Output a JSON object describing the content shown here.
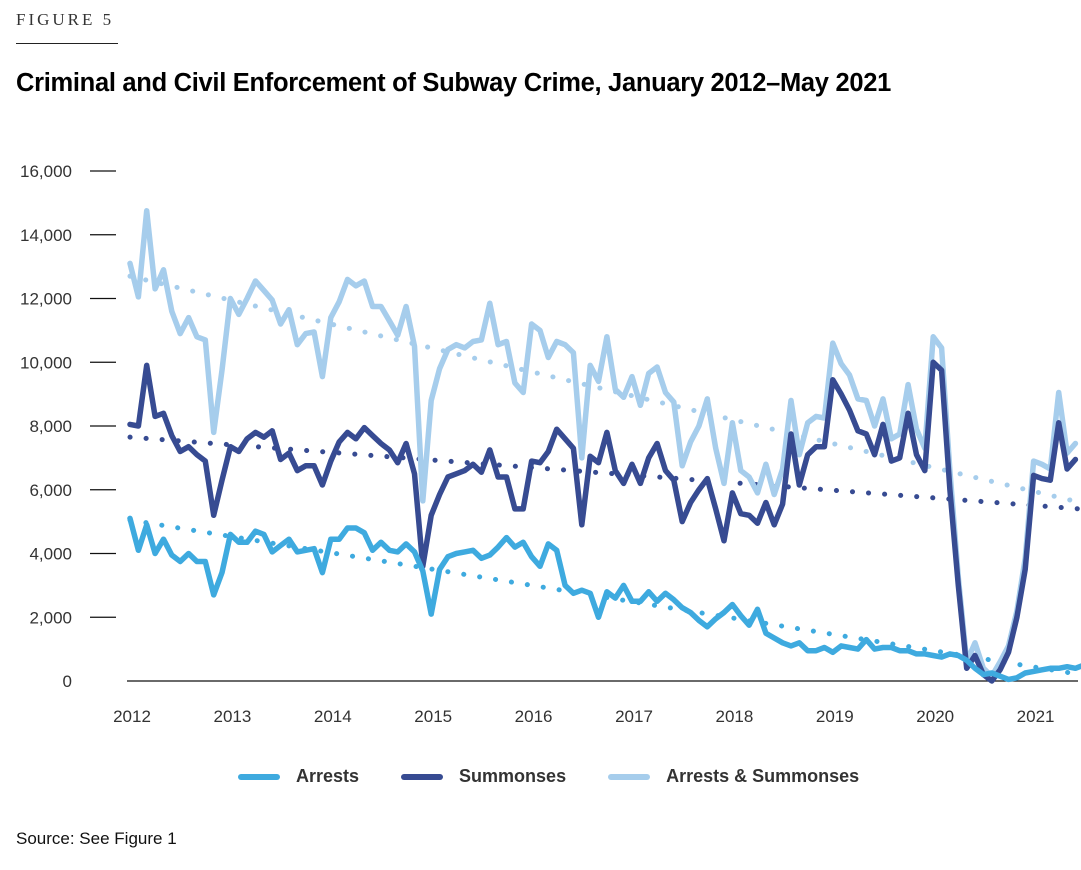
{
  "figure_label": "FIGURE 5",
  "title": "Criminal and Civil Enforcement of Subway Crime, January 2012–May 2021",
  "source": "Source: See Figure 1",
  "chart_data": {
    "type": "line",
    "title": "Criminal and Civil Enforcement of Subway Crime, January 2012–May 2021",
    "xlabel": "",
    "ylabel": "",
    "x_start": "2012-01",
    "x_end": "2021-05",
    "frequency": "monthly",
    "ylim": [
      0,
      16000
    ],
    "yticks": [
      0,
      2000,
      4000,
      6000,
      8000,
      10000,
      12000,
      14000,
      16000
    ],
    "ytick_labels": [
      "0",
      "2,000",
      "4,000",
      "6,000",
      "8,000",
      "10,000",
      "12,000",
      "14,000",
      "16,000"
    ],
    "xtick_labels": [
      "2012",
      "2013",
      "2014",
      "2015",
      "2016",
      "2017",
      "2018",
      "2019",
      "2020",
      "2021"
    ],
    "grid": false,
    "legend_position": "bottom",
    "series": [
      {
        "name": "Arrests",
        "color": "#3eaadf",
        "values": [
          5100,
          4100,
          4900,
          4000,
          4450,
          3950,
          3750,
          4000,
          3750,
          3750,
          2700,
          3400,
          4600,
          4350,
          4350,
          4700,
          4600,
          4050,
          4250,
          4450,
          4050,
          4100,
          4150,
          3400,
          4450,
          4450,
          4800,
          4800,
          4650,
          4100,
          4350,
          4100,
          4050,
          4300,
          4050,
          3450,
          2100,
          3500,
          3900,
          4000,
          4050,
          4100,
          3850,
          3950,
          4200,
          4500,
          4200,
          4350,
          3900,
          3600,
          4300,
          4100,
          3000,
          2750,
          2850,
          2750,
          2000,
          2800,
          2600,
          3000,
          2500,
          2500,
          2800,
          2500,
          2750,
          2550,
          2300,
          2150,
          1900,
          1700,
          1950,
          2150,
          2400,
          2050,
          1750,
          2250,
          1500,
          1350,
          1200,
          1100,
          1200,
          950,
          950,
          1050,
          900,
          1100,
          1050,
          1000,
          1300,
          1000,
          1050,
          1050,
          950,
          950,
          850,
          850,
          800,
          750,
          850,
          800,
          650,
          400,
          200,
          250,
          150,
          50,
          100,
          250,
          300,
          350,
          400,
          400,
          450,
          400,
          500,
          450,
          500
        ],
        "trend": [
          5050,
          100
        ]
      },
      {
        "name": "Summonses",
        "color": "#374b92",
        "values": [
          8050,
          8000,
          9900,
          8300,
          8400,
          7700,
          7200,
          7350,
          7100,
          6900,
          5200,
          6300,
          7350,
          7200,
          7600,
          7800,
          7650,
          7850,
          6950,
          7150,
          6600,
          6750,
          6750,
          6150,
          6900,
          7500,
          7800,
          7600,
          7950,
          7700,
          7450,
          7250,
          6850,
          7450,
          6500,
          3600,
          5200,
          5850,
          6400,
          6500,
          6600,
          6800,
          6550,
          7250,
          6400,
          6400,
          5400,
          5400,
          6900,
          6850,
          7200,
          7900,
          7600,
          7300,
          4900,
          7050,
          6850,
          7800,
          6600,
          6200,
          6800,
          6200,
          7000,
          7450,
          6600,
          6300,
          5000,
          5600,
          6000,
          6350,
          5400,
          4400,
          5900,
          5250,
          5200,
          4950,
          5600,
          4900,
          5550,
          7750,
          6150,
          7100,
          7350,
          7350,
          9450,
          9000,
          8500,
          7850,
          7750,
          7100,
          8050,
          6900,
          7000,
          8400,
          7100,
          6600,
          10000,
          9750,
          6000,
          3000,
          400,
          800,
          200,
          0,
          350,
          900,
          2000,
          3500,
          6450,
          6350,
          6300,
          8100,
          6650,
          6950
        ],
        "trend": [
          7650,
          5350
        ]
      },
      {
        "name": "Arrests & Summonses",
        "color": "#a6cdec",
        "values": [
          13100,
          12050,
          14750,
          12300,
          12900,
          11600,
          10900,
          11400,
          10800,
          10700,
          7800,
          9750,
          12000,
          11500,
          12000,
          12550,
          12250,
          11950,
          11200,
          11650,
          10550,
          10900,
          10950,
          9550,
          11400,
          11900,
          12600,
          12400,
          12550,
          11750,
          11750,
          11300,
          10850,
          11750,
          10500,
          5650,
          8800,
          9800,
          10400,
          10550,
          10450,
          10650,
          10700,
          11850,
          10550,
          10650,
          9350,
          9050,
          11200,
          11000,
          10150,
          10650,
          10550,
          10300,
          7000,
          9900,
          9400,
          10800,
          9150,
          8900,
          9550,
          8650,
          9650,
          9850,
          9050,
          8750,
          6750,
          7500,
          8000,
          8850,
          7300,
          6200,
          8100,
          6600,
          6400,
          5900,
          6800,
          5850,
          6650,
          8800,
          7100,
          8100,
          8300,
          8250,
          10600,
          9950,
          9600,
          8850,
          8800,
          8000,
          8850,
          7600,
          7750,
          9300,
          7900,
          7300,
          10800,
          10450,
          6600,
          3250,
          600,
          1200,
          400,
          150,
          600,
          1100,
          2200,
          3850,
          6900,
          6800,
          6650,
          9050,
          7150,
          7450
        ],
        "trend": [
          12700,
          5450
        ]
      }
    ]
  },
  "legend": [
    {
      "label": "Arrests",
      "color": "#3eaadf"
    },
    {
      "label": "Summonses",
      "color": "#374b92"
    },
    {
      "label": "Arrests & Summonses",
      "color": "#a6cdec"
    }
  ]
}
